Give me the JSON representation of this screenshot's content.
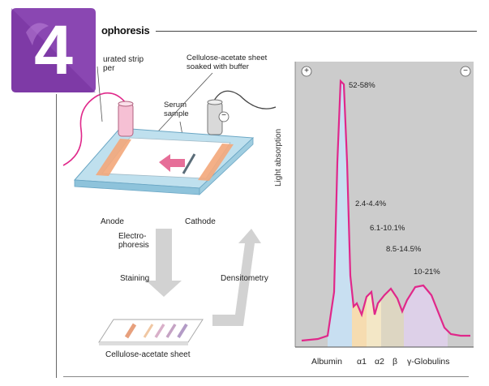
{
  "badge": {
    "number": "4",
    "colors": {
      "light": "#a05bc4",
      "dark": "#6a2d8f"
    }
  },
  "title": "ophoresis",
  "apparatus": {
    "strip_label": "urated strip per",
    "sheet_label": "Cellulose-acetate sheet soaked with buffer",
    "serum_label": "Serum sample",
    "anode_label": "Anode",
    "cathode_label": "Cathode",
    "plus_symbol": "+",
    "minus_symbol": "−"
  },
  "process": {
    "step1": "Electro-phoresis",
    "step2": "Staining",
    "step3": "Densitometry",
    "sheet_label": "Cellulose-acetate sheet"
  },
  "chart_data": {
    "type": "line",
    "ylabel": "Light absorption",
    "plus_symbol": "+",
    "minus_symbol": "−",
    "fractions": [
      {
        "name": "Albumin",
        "label": "52-58%",
        "color": "#c8dff1"
      },
      {
        "name": "α1",
        "label": "2.4-4.4%",
        "color": "#f6dcb0"
      },
      {
        "name": "α2",
        "label": "6.1-10.1%",
        "color": "#f3e7c6"
      },
      {
        "name": "β",
        "label": "8.5-14.5%",
        "color": "#ddd6c2"
      },
      {
        "name": "γ-Globulins",
        "label": "10-21%",
        "color": "#ddd0e8"
      }
    ],
    "x_labels": [
      "Albumin",
      "α1",
      "α2",
      "β",
      "γ-Globulins"
    ],
    "curve_color": "#e0288a"
  }
}
